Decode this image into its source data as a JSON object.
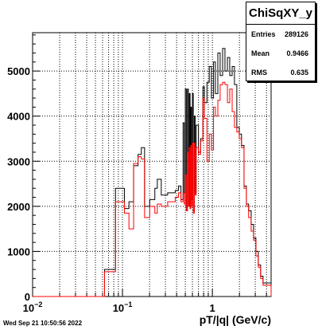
{
  "stats": {
    "title": "ChiSqXY_y",
    "rows": [
      {
        "label": "Entries",
        "value": "289126"
      },
      {
        "label": "Mean",
        "value": "0.9466"
      },
      {
        "label": "RMS",
        "value": "0.635"
      }
    ]
  },
  "timestamp": "Wed Sep 21 10:50:56 2022",
  "chart_data": {
    "type": "histogram",
    "title": "",
    "xlabel": "pT/|q| (GeV/c)",
    "xscale": "log",
    "xlim": [
      0.01,
      4.5
    ],
    "ylim": [
      0,
      5850
    ],
    "grid": true,
    "xtick_labels": [
      {
        "value": 0.01,
        "base": "10",
        "exp": "−2"
      },
      {
        "value": 0.1,
        "base": "10",
        "exp": "−1"
      },
      {
        "value": 1,
        "base": "1",
        "exp": ""
      }
    ],
    "yticks": [
      0,
      1000,
      2000,
      3000,
      4000,
      5000
    ],
    "series": [
      {
        "color": "#000000",
        "points": [
          [
            0.01,
            0
          ],
          [
            0.0631,
            600
          ],
          [
            0.0837,
            2400
          ],
          [
            0.105,
            1950
          ],
          [
            0.118,
            2100
          ],
          [
            0.133,
            2900
          ],
          [
            0.149,
            3150
          ],
          [
            0.162,
            3300
          ],
          [
            0.176,
            2000
          ],
          [
            0.201,
            2150
          ],
          [
            0.229,
            2400
          ],
          [
            0.244,
            2600
          ],
          [
            0.27,
            2250
          ],
          [
            0.318,
            2300
          ],
          [
            0.386,
            2350
          ],
          [
            0.42,
            2450
          ],
          [
            0.447,
            2150
          ],
          [
            0.472,
            3850
          ],
          [
            0.487,
            2300
          ],
          [
            0.5,
            4600
          ],
          [
            0.513,
            1900
          ],
          [
            0.527,
            4600
          ],
          [
            0.541,
            2050
          ],
          [
            0.553,
            4500
          ],
          [
            0.565,
            1950
          ],
          [
            0.575,
            4200
          ],
          [
            0.585,
            2150
          ],
          [
            0.6,
            4500
          ],
          [
            0.613,
            1900
          ],
          [
            0.63,
            4000
          ],
          [
            0.645,
            2300
          ],
          [
            0.66,
            3800
          ],
          [
            0.7,
            3200
          ],
          [
            0.74,
            3500
          ],
          [
            0.784,
            4650
          ],
          [
            0.815,
            4300
          ],
          [
            0.87,
            4750
          ],
          [
            0.923,
            5100
          ],
          [
            0.975,
            4400
          ],
          [
            1.03,
            5200
          ],
          [
            1.08,
            4500
          ],
          [
            1.15,
            5400
          ],
          [
            1.22,
            4900
          ],
          [
            1.3,
            5500
          ],
          [
            1.38,
            5000
          ],
          [
            1.47,
            5300
          ],
          [
            1.56,
            4900
          ],
          [
            1.66,
            5100
          ],
          [
            1.76,
            4700
          ],
          [
            1.87,
            3750
          ],
          [
            1.99,
            3600
          ],
          [
            2.11,
            3350
          ],
          [
            2.25,
            2450
          ],
          [
            2.39,
            2050
          ],
          [
            2.53,
            1900
          ],
          [
            2.7,
            1600
          ],
          [
            2.87,
            1300
          ],
          [
            3.05,
            1000
          ],
          [
            3.24,
            700
          ],
          [
            3.44,
            450
          ],
          [
            3.66,
            300
          ],
          [
            4.5,
            0
          ]
        ]
      },
      {
        "color": "#ff0000",
        "points": [
          [
            0.01,
            0
          ],
          [
            0.0631,
            550
          ],
          [
            0.0837,
            2100
          ],
          [
            0.105,
            1850
          ],
          [
            0.118,
            1500
          ],
          [
            0.133,
            2950
          ],
          [
            0.149,
            3100
          ],
          [
            0.162,
            3050
          ],
          [
            0.176,
            1750
          ],
          [
            0.201,
            2000
          ],
          [
            0.229,
            1850
          ],
          [
            0.244,
            2050
          ],
          [
            0.27,
            2000
          ],
          [
            0.318,
            2100
          ],
          [
            0.386,
            2200
          ],
          [
            0.42,
            2300
          ],
          [
            0.447,
            2100
          ],
          [
            0.472,
            2300
          ],
          [
            0.487,
            2050
          ],
          [
            0.5,
            2700
          ],
          [
            0.513,
            1900
          ],
          [
            0.527,
            3200
          ],
          [
            0.541,
            2000
          ],
          [
            0.553,
            3300
          ],
          [
            0.565,
            1950
          ],
          [
            0.575,
            3350
          ],
          [
            0.585,
            2000
          ],
          [
            0.6,
            3400
          ],
          [
            0.613,
            1850
          ],
          [
            0.63,
            3400
          ],
          [
            0.645,
            2250
          ],
          [
            0.66,
            3300
          ],
          [
            0.7,
            3150
          ],
          [
            0.74,
            3450
          ],
          [
            0.784,
            4400
          ],
          [
            0.815,
            3950
          ],
          [
            0.87,
            3000
          ],
          [
            0.923,
            3600
          ],
          [
            0.975,
            3250
          ],
          [
            1.03,
            4200
          ],
          [
            1.08,
            4000
          ],
          [
            1.15,
            4350
          ],
          [
            1.22,
            4700
          ],
          [
            1.3,
            4750
          ],
          [
            1.38,
            4700
          ],
          [
            1.47,
            4300
          ],
          [
            1.56,
            4600
          ],
          [
            1.66,
            4100
          ],
          [
            1.76,
            3750
          ],
          [
            1.87,
            3650
          ],
          [
            1.99,
            3500
          ],
          [
            2.11,
            3300
          ],
          [
            2.25,
            2400
          ],
          [
            2.39,
            2000
          ],
          [
            2.53,
            1750
          ],
          [
            2.7,
            1450
          ],
          [
            2.87,
            1250
          ],
          [
            3.05,
            900
          ],
          [
            3.24,
            650
          ],
          [
            3.44,
            400
          ],
          [
            3.66,
            250
          ],
          [
            4.5,
            0
          ]
        ]
      }
    ]
  }
}
